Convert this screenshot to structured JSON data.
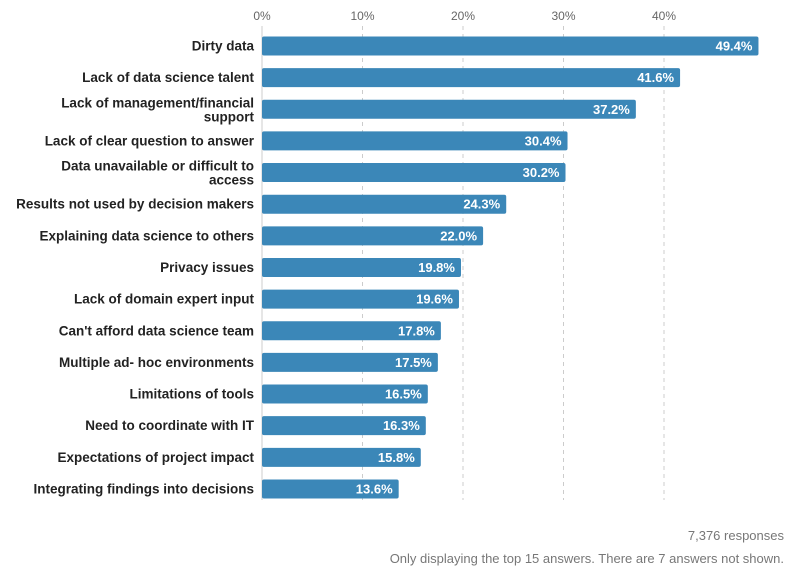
{
  "chart_data": {
    "type": "bar",
    "orientation": "horizontal",
    "categories": [
      "Dirty data",
      "Lack of data science talent",
      "Lack of management/financial support",
      "Lack of clear question to answer",
      "Data unavailable or difficult to access",
      "Results not used by decision makers",
      "Explaining data science to others",
      "Privacy issues",
      "Lack of domain expert input",
      "Can't afford data science team",
      "Multiple ad- hoc environments",
      "Limitations of tools",
      "Need to coordinate with IT",
      "Expectations of project impact",
      "Integrating findings into decisions"
    ],
    "values": [
      49.4,
      41.6,
      37.2,
      30.4,
      30.2,
      24.3,
      22.0,
      19.8,
      19.6,
      17.8,
      17.5,
      16.5,
      16.3,
      15.8,
      13.6
    ],
    "value_labels": [
      "49.4%",
      "41.6%",
      "37.2%",
      "30.4%",
      "30.2%",
      "24.3%",
      "22.0%",
      "19.8%",
      "19.6%",
      "17.8%",
      "17.5%",
      "16.5%",
      "16.3%",
      "15.8%",
      "13.6%"
    ],
    "x_ticks": [
      0,
      10,
      20,
      30,
      40
    ],
    "x_tick_labels": [
      "0%",
      "10%",
      "20%",
      "30%",
      "40%"
    ],
    "xlim": [
      0,
      50
    ],
    "grid": true,
    "bar_color": "#3b87b8",
    "grid_color": "#cccccc"
  },
  "footer": {
    "responses": "7,376 responses",
    "note": "Only displaying the top 15 answers. There are 7 answers not shown."
  }
}
